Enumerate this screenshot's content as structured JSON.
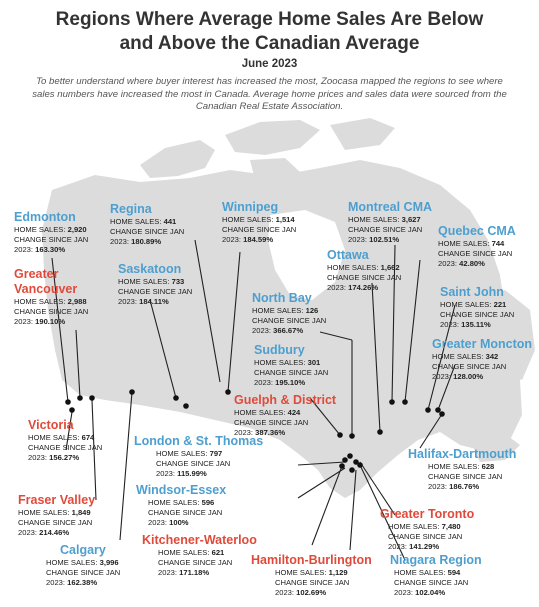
{
  "title_line1": "Regions Where Average Home Sales Are Below",
  "title_line2": "and Above the Canadian Average",
  "date": "June 2023",
  "intro": "To better understand where buyer interest has increased the most, Zoocasa mapped the regions to see where sales numbers have increased the most in Canada. Average home prices and sales data were sourced from the Canadian Real Estate Association.",
  "colors": {
    "below_average": "#4d9fcf",
    "above_average": "#e04a3a",
    "land": "#dcdcdc"
  },
  "labels": {
    "sales": "HOME SALES:",
    "change_a": "CHANGE SINCE JAN",
    "change_b": "2023:"
  },
  "regions": {
    "edmonton": {
      "name": "Edmonton",
      "sales": "2,920",
      "change": "163.30%",
      "color": "blue"
    },
    "greater_vancouver": {
      "name_a": "Greater",
      "name_b": "Vancouver",
      "sales": "2,988",
      "change": "190.10%",
      "color": "red"
    },
    "regina": {
      "name": "Regina",
      "sales": "441",
      "change": "180.89%",
      "color": "blue"
    },
    "winnipeg": {
      "name": "Winnipeg",
      "sales": "1,514",
      "change": "184.59%",
      "color": "blue"
    },
    "saskatoon": {
      "name": "Saskatoon",
      "sales": "733",
      "change": "184.11%",
      "color": "blue"
    },
    "montreal": {
      "name": "Montreal CMA",
      "sales": "3,627",
      "change": "102.51%",
      "color": "blue"
    },
    "quebec": {
      "name": "Quebec CMA",
      "sales": "744",
      "change": "42.80%",
      "color": "blue"
    },
    "ottawa": {
      "name": "Ottawa",
      "sales": "1,662",
      "change": "174.26%",
      "color": "blue"
    },
    "north_bay": {
      "name": "North Bay",
      "sales": "126",
      "change": "366.67%",
      "color": "blue"
    },
    "saint_john": {
      "name": "Saint John",
      "sales": "221",
      "change": "135.11%",
      "color": "blue"
    },
    "greater_moncton": {
      "name": "Greater Moncton",
      "sales": "342",
      "change": "128.00%",
      "color": "blue"
    },
    "sudbury": {
      "name": "Sudbury",
      "sales": "301",
      "change": "195.10%",
      "color": "blue"
    },
    "guelph": {
      "name": "Guelph & District",
      "sales": "424",
      "change": "387.36%",
      "color": "red"
    },
    "victoria": {
      "name": "Victoria",
      "sales": "674",
      "change": "156.27%",
      "color": "red"
    },
    "london": {
      "name": "London & St. Thomas",
      "sales": "797",
      "change": "115.99%",
      "color": "blue"
    },
    "halifax": {
      "name": "Halifax-Dartmouth",
      "sales": "628",
      "change": "186.76%",
      "color": "blue"
    },
    "fraser_valley": {
      "name": "Fraser Valley",
      "sales": "1,849",
      "change": "214.46%",
      "color": "red"
    },
    "windsor": {
      "name": "Windsor-Essex",
      "sales": "596",
      "change": "100%",
      "color": "blue"
    },
    "greater_toronto": {
      "name": "Greater Toronto",
      "sales": "7,480",
      "change": "141.29%",
      "color": "red"
    },
    "kitchener": {
      "name": "Kitchener-Waterloo",
      "sales": "621",
      "change": "171.18%",
      "color": "red"
    },
    "calgary": {
      "name": "Calgary",
      "sales": "3,996",
      "change": "162.38%",
      "color": "blue"
    },
    "hamilton": {
      "name": "Hamilton-Burlington",
      "sales": "1,129",
      "change": "102.69%",
      "color": "red"
    },
    "niagara": {
      "name": "Niagara Region",
      "sales": "594",
      "change": "102.04%",
      "color": "blue"
    }
  }
}
